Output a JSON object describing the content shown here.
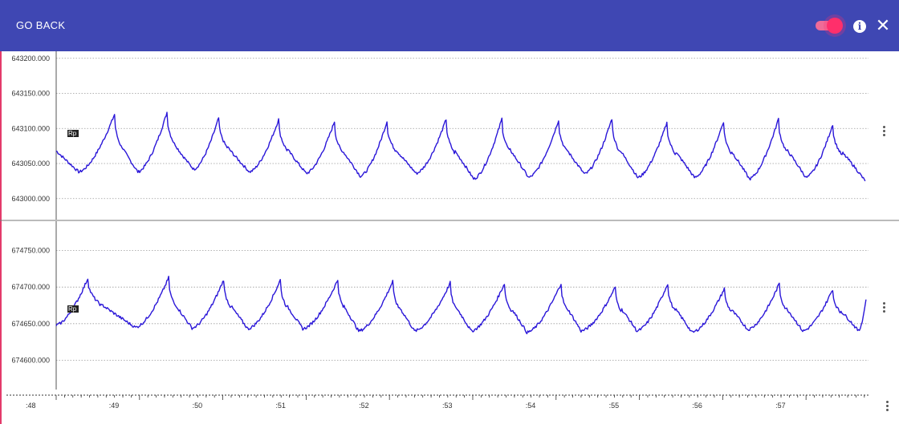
{
  "header": {
    "back_label": "GO BACK",
    "toggle_on": true,
    "info_icon": "info-icon",
    "close_icon": "close-icon",
    "close_glyph": "✕",
    "info_glyph": "i",
    "colors": {
      "bar": "#3f47b3",
      "toggle": "#ff2f6b"
    }
  },
  "chart_data": [
    {
      "type": "line",
      "series": [
        {
          "name": "Rp",
          "color": "#2a16d8"
        }
      ],
      "series_tag": "Rp",
      "y_ticks": [
        "643200.000",
        "643150.000",
        "643100.000",
        "643050.000",
        "643000.000"
      ],
      "y_tick_values": [
        643200,
        643150,
        643100,
        643050,
        643000
      ],
      "ylim": [
        642970,
        643210
      ],
      "baseline": 643048,
      "peak_times": [
        48.7,
        49.33,
        49.95,
        50.67,
        51.34,
        51.97,
        52.68,
        53.35,
        54.03,
        54.67,
        55.33,
        56.01,
        56.67,
        57.32
      ],
      "peak_values": [
        643120,
        643123,
        643115,
        643113,
        643110,
        643110,
        643113,
        643114,
        643112,
        643114,
        643108,
        643110,
        643114,
        643106
      ],
      "trough_times": [
        48.27,
        48.98,
        49.65,
        50.32,
        51.0,
        51.65,
        52.32,
        53.01,
        53.67,
        54.34,
        54.98,
        55.66,
        56.32,
        57.0,
        57.71
      ],
      "trough_values": [
        643038,
        643038,
        643042,
        643038,
        643036,
        643032,
        643036,
        643028,
        643030,
        643035,
        643030,
        643030,
        643028,
        643030,
        643025
      ],
      "x_range": [
        48.0,
        57.75
      ],
      "grid": true
    },
    {
      "type": "line",
      "series": [
        {
          "name": "Rp",
          "color": "#2a16d8"
        }
      ],
      "series_tag": "Rp",
      "y_ticks": [
        "674750.000",
        "674700.000",
        "674650.000",
        "674600.000"
      ],
      "y_tick_values": [
        674750,
        674700,
        674650,
        674600
      ],
      "ylim": [
        674560,
        674790
      ],
      "baseline": 674655,
      "peak_times": [
        48.38,
        49.35,
        50.01,
        50.69,
        51.38,
        52.04,
        52.73,
        53.38,
        54.06,
        54.71,
        55.34,
        56.02,
        56.68,
        57.32,
        57.72
      ],
      "peak_values": [
        674712,
        674713,
        674710,
        674710,
        674710,
        674708,
        674706,
        674705,
        674705,
        674700,
        674705,
        674698,
        674705,
        674697,
        674683
      ],
      "trough_times": [
        48.0,
        48.95,
        49.63,
        50.3,
        50.96,
        51.63,
        52.3,
        52.98,
        53.65,
        54.3,
        54.97,
        55.63,
        56.3,
        56.96,
        57.63
      ],
      "trough_values": [
        674648,
        674645,
        674644,
        674643,
        674643,
        674640,
        674640,
        674640,
        674638,
        674640,
        674640,
        674638,
        674642,
        674640,
        674640
      ],
      "x_range": [
        48.0,
        57.75
      ],
      "grid": true
    }
  ],
  "x_axis": {
    "labels": [
      ":48",
      ":49",
      ":50",
      ":51",
      ":52",
      ":53",
      ":54",
      ":55",
      ":56",
      ":57"
    ],
    "values": [
      48,
      49,
      50,
      51,
      52,
      53,
      54,
      55,
      56,
      57
    ]
  }
}
